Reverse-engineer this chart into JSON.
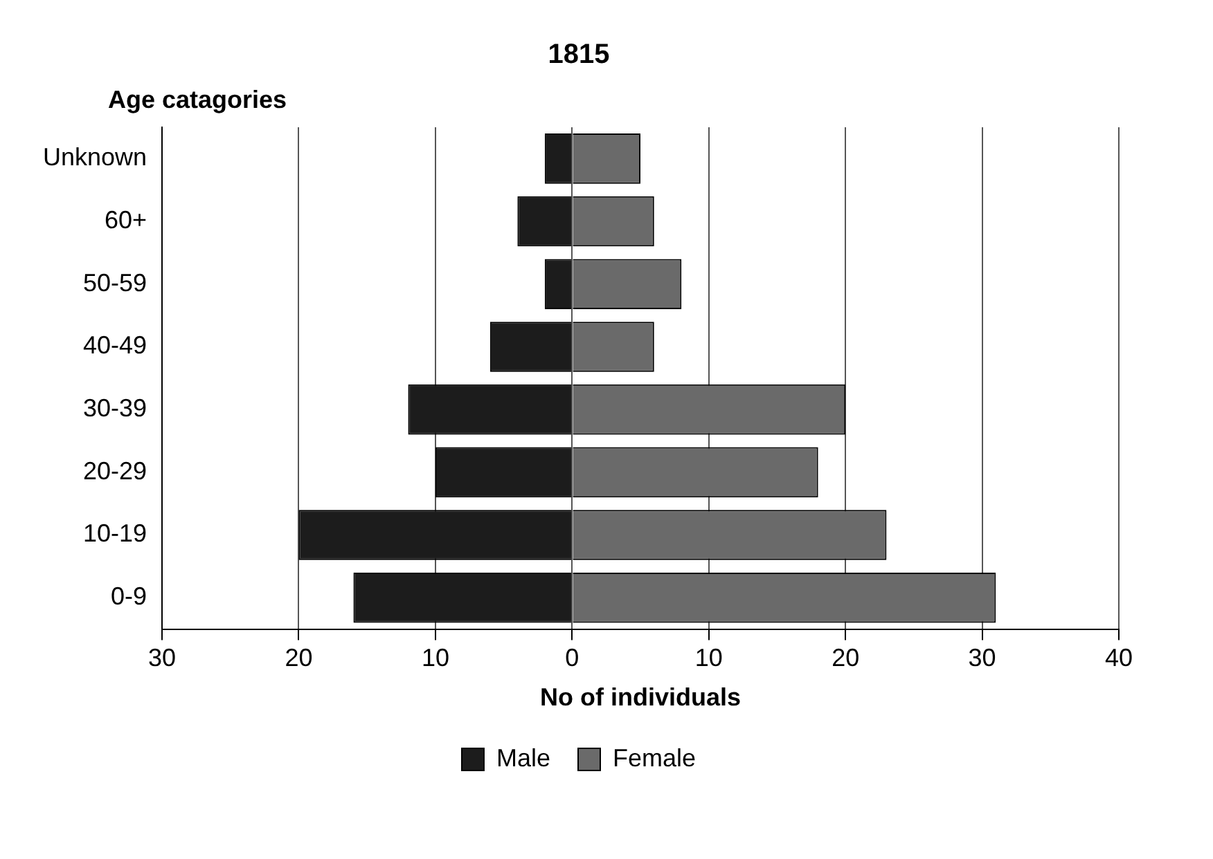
{
  "chart_data": {
    "type": "bar",
    "orientation": "horizontal",
    "title": "1815",
    "xlabel": "No of individuals",
    "ylabel": "Age catagories",
    "categories": [
      "Unknown",
      "60+",
      "50-59",
      "40-49",
      "30-39",
      "20-29",
      "10-19",
      "0-9"
    ],
    "series": [
      {
        "name": "Male",
        "color": "#1c1c1c",
        "values": [
          -2,
          -4,
          -2,
          -6,
          -12,
          -10,
          -20,
          -16
        ]
      },
      {
        "name": "Female",
        "color": "#6a6a6a",
        "values": [
          5,
          6,
          8,
          6,
          20,
          18,
          23,
          31
        ]
      }
    ],
    "xlim": [
      -30,
      40
    ],
    "xticks": [
      {
        "value": -30,
        "label": "30"
      },
      {
        "value": -20,
        "label": "20"
      },
      {
        "value": -10,
        "label": "10"
      },
      0,
      10,
      20,
      30,
      40
    ],
    "stacked": true,
    "grid": "x",
    "legend": "bottom"
  }
}
